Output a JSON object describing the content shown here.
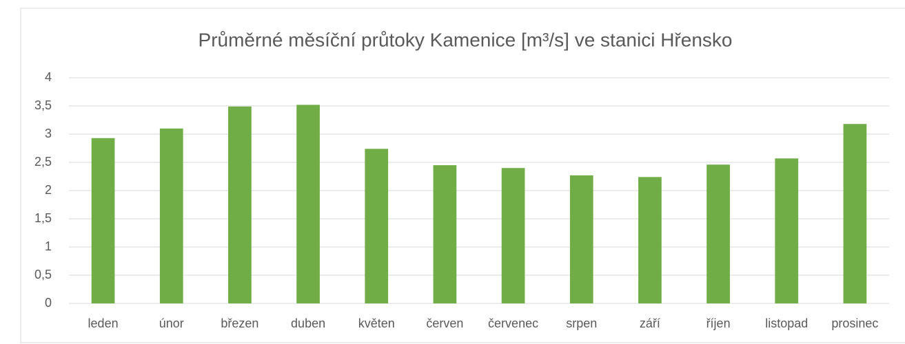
{
  "chart_data": {
    "type": "bar",
    "title": "Průměrné měsíční průtoky Kamenice [m³/s] ve stanici Hřensko",
    "categories": [
      "leden",
      "únor",
      "březen",
      "duben",
      "květen",
      "červen",
      "červenec",
      "srpen",
      "září",
      "říjen",
      "listopad",
      "prosinec"
    ],
    "values": [
      2.93,
      3.1,
      3.49,
      3.52,
      2.74,
      2.45,
      2.4,
      2.27,
      2.24,
      2.46,
      2.57,
      3.18
    ],
    "color": "#70ad47",
    "ylim": [
      0,
      4
    ],
    "yticks": [
      0,
      {
        "value": 0.5,
        "label": "0,5"
      },
      1,
      {
        "value": 1.5,
        "label": "1,5"
      },
      2,
      {
        "value": 2.5,
        "label": "2,5"
      },
      3,
      {
        "value": 3.5,
        "label": "3,5"
      },
      4
    ],
    "grid": true
  }
}
